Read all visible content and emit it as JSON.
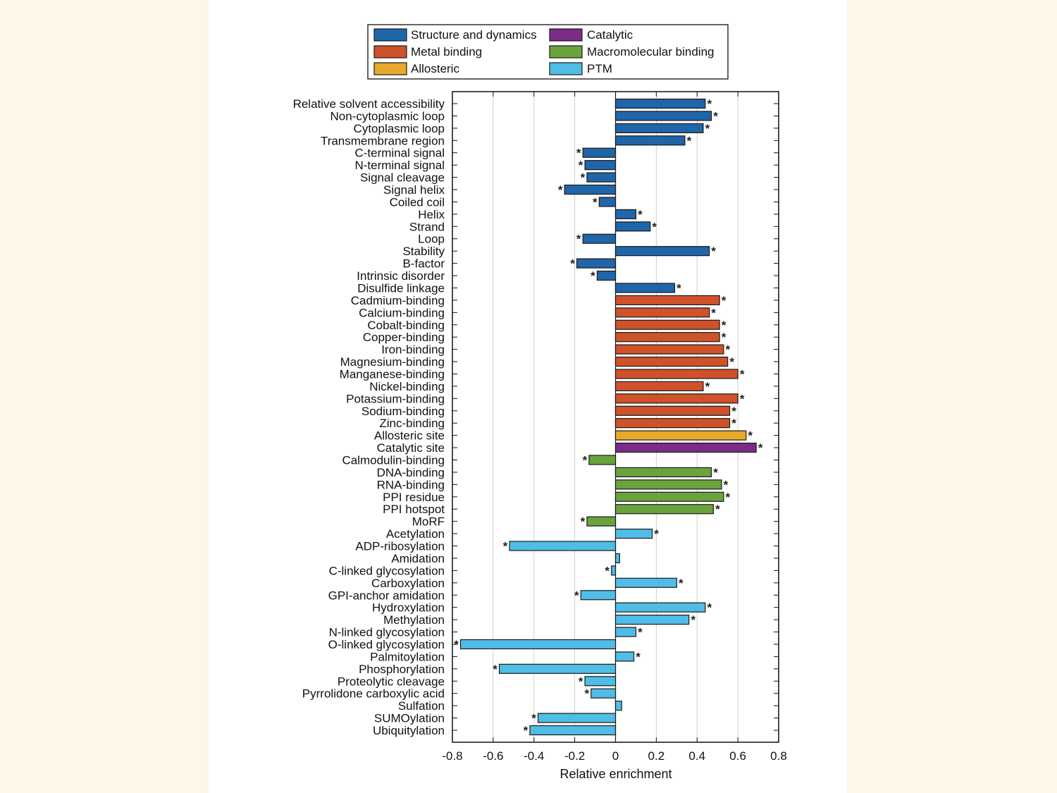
{
  "chart_data": {
    "type": "bar",
    "orientation": "horizontal",
    "xlabel": "Relative enrichment",
    "xlim": [
      -0.8,
      0.8
    ],
    "xticks": [
      -0.8,
      -0.6,
      -0.4,
      -0.2,
      0,
      0.2,
      0.4,
      0.6,
      0.8
    ],
    "grid": "vertical",
    "significance_marker": "*",
    "legend": {
      "placement": "top",
      "entries": [
        {
          "key": "structure",
          "label": "Structure and dynamics",
          "color": "#1f65aa"
        },
        {
          "key": "metal",
          "label": "Metal binding",
          "color": "#d0522a"
        },
        {
          "key": "allosteric",
          "label": "Allosteric",
          "color": "#e8a92a"
        },
        {
          "key": "catalytic",
          "label": "Catalytic",
          "color": "#7b2c87"
        },
        {
          "key": "macro",
          "label": "Macromolecular binding",
          "color": "#6aa33c"
        },
        {
          "key": "ptm",
          "label": "PTM",
          "color": "#4fbde6"
        }
      ]
    },
    "categories": [
      "Relative solvent accessibility",
      "Non-cytoplasmic loop",
      "Cytoplasmic loop",
      "Transmembrane region",
      "C-terminal signal",
      "N-terminal signal",
      "Signal cleavage",
      "Signal helix",
      "Coiled coil",
      "Helix",
      "Strand",
      "Loop",
      "Stability",
      "B-factor",
      "Intrinsic disorder",
      "Disulfide linkage",
      "Cadmium-binding",
      "Calcium-binding",
      "Cobalt-binding",
      "Copper-binding",
      "Iron-binding",
      "Magnesium-binding",
      "Manganese-binding",
      "Nickel-binding",
      "Potassium-binding",
      "Sodium-binding",
      "Zinc-binding",
      "Allosteric site",
      "Catalytic site",
      "Calmodulin-binding",
      "DNA-binding",
      "RNA-binding",
      "PPI residue",
      "PPI hotspot",
      "MoRF",
      "Acetylation",
      "ADP-ribosylation",
      "Amidation",
      "C-linked glycosylation",
      "Carboxylation",
      "GPI-anchor amidation",
      "Hydroxylation",
      "Methylation",
      "N-linked glycosylation",
      "O-linked glycosylation",
      "Palmitoylation",
      "Phosphorylation",
      "Proteolytic cleavage",
      "Pyrrolidone carboxylic acid",
      "Sulfation",
      "SUMOylation",
      "Ubiquitylation"
    ],
    "values": [
      0.44,
      0.47,
      0.43,
      0.34,
      -0.16,
      -0.15,
      -0.14,
      -0.25,
      -0.08,
      0.1,
      0.17,
      -0.16,
      0.46,
      -0.19,
      -0.09,
      0.29,
      0.51,
      0.46,
      0.51,
      0.51,
      0.53,
      0.55,
      0.6,
      0.43,
      0.6,
      0.56,
      0.56,
      0.64,
      0.69,
      -0.13,
      0.47,
      0.52,
      0.53,
      0.48,
      -0.14,
      0.18,
      -0.52,
      0.02,
      -0.02,
      0.3,
      -0.17,
      0.44,
      0.36,
      0.1,
      -0.76,
      0.09,
      -0.57,
      -0.15,
      -0.12,
      0.03,
      -0.38,
      -0.42
    ],
    "groups": [
      "structure",
      "structure",
      "structure",
      "structure",
      "structure",
      "structure",
      "structure",
      "structure",
      "structure",
      "structure",
      "structure",
      "structure",
      "structure",
      "structure",
      "structure",
      "structure",
      "metal",
      "metal",
      "metal",
      "metal",
      "metal",
      "metal",
      "metal",
      "metal",
      "metal",
      "metal",
      "metal",
      "allosteric",
      "catalytic",
      "macro",
      "macro",
      "macro",
      "macro",
      "macro",
      "macro",
      "ptm",
      "ptm",
      "ptm",
      "ptm",
      "ptm",
      "ptm",
      "ptm",
      "ptm",
      "ptm",
      "ptm",
      "ptm",
      "ptm",
      "ptm",
      "ptm",
      "ptm",
      "ptm",
      "ptm"
    ],
    "significant": [
      true,
      true,
      true,
      true,
      true,
      true,
      true,
      true,
      true,
      true,
      true,
      true,
      true,
      true,
      true,
      true,
      true,
      true,
      true,
      true,
      true,
      true,
      true,
      true,
      true,
      true,
      true,
      true,
      true,
      true,
      true,
      true,
      true,
      true,
      true,
      true,
      true,
      false,
      true,
      true,
      true,
      true,
      true,
      true,
      true,
      true,
      true,
      true,
      true,
      false,
      true,
      true
    ]
  }
}
